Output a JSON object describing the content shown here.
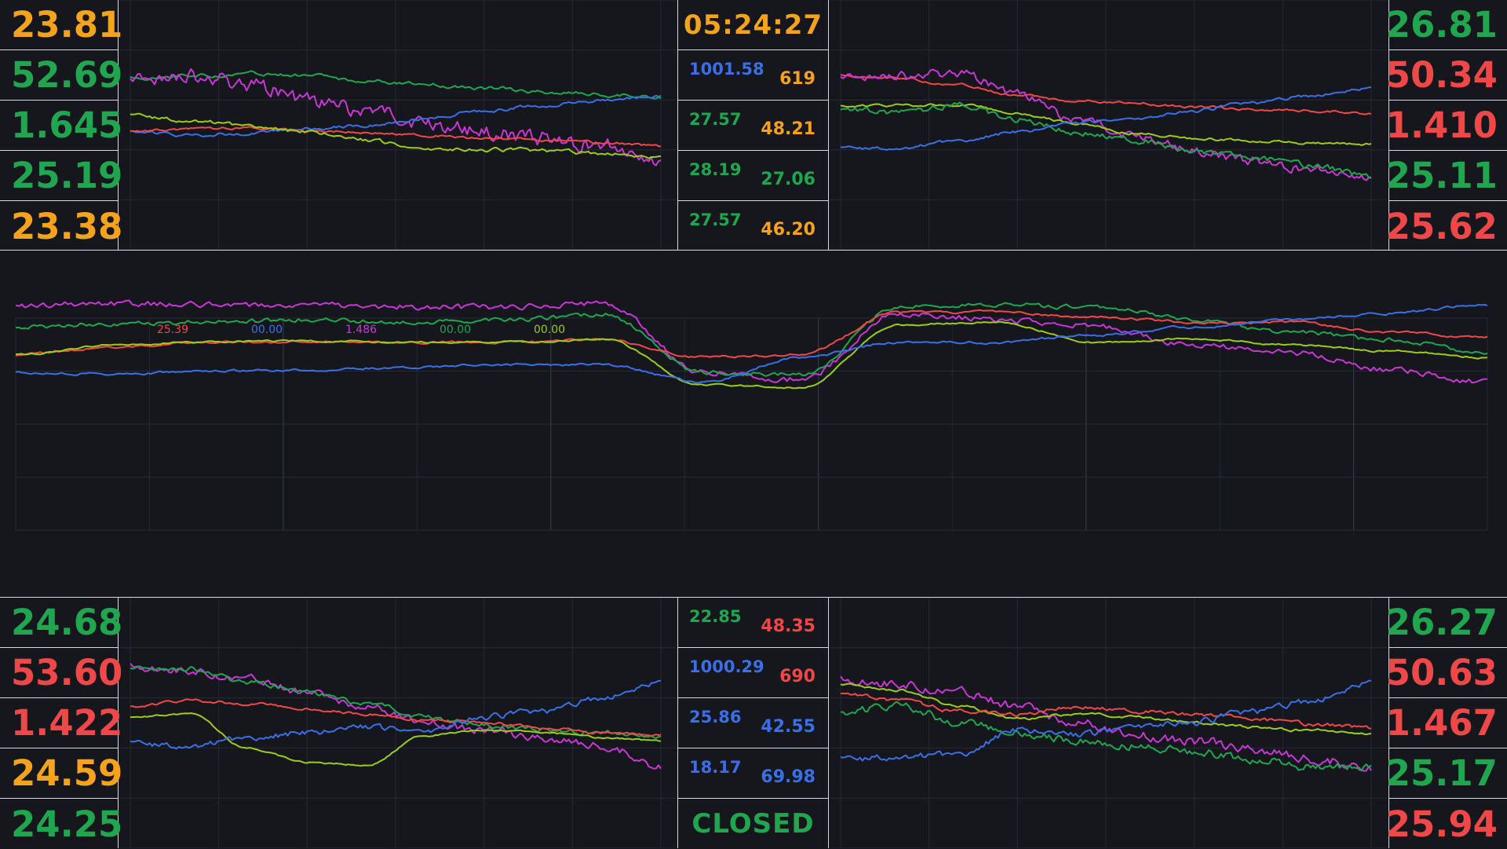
{
  "colors": {
    "red": "#f04848",
    "blue": "#3a6fe8",
    "magenta": "#c936d6",
    "green": "#1fa64f",
    "lime": "#9ccc1a",
    "orange": "#f5a21c",
    "grid": "#262a33"
  },
  "top_left_values": [
    {
      "text": "23.81",
      "color": "#f5a21c"
    },
    {
      "text": "52.69",
      "color": "#1fa64f"
    },
    {
      "text": "1.645",
      "color": "#1fa64f"
    },
    {
      "text": "25.19",
      "color": "#1fa64f"
    },
    {
      "text": "23.38",
      "color": "#f5a21c"
    }
  ],
  "top_right_values": [
    {
      "text": "26.81",
      "color": "#1fa64f"
    },
    {
      "text": "50.34",
      "color": "#f04848"
    },
    {
      "text": "1.410",
      "color": "#f04848"
    },
    {
      "text": "25.11",
      "color": "#1fa64f"
    },
    {
      "text": "25.62",
      "color": "#f04848"
    }
  ],
  "bottom_left_values": [
    {
      "text": "24.68",
      "color": "#1fa64f"
    },
    {
      "text": "53.60",
      "color": "#f04848"
    },
    {
      "text": "1.422",
      "color": "#f04848"
    },
    {
      "text": "24.59",
      "color": "#f5a21c"
    },
    {
      "text": "24.25",
      "color": "#1fa64f"
    }
  ],
  "bottom_right_values": [
    {
      "text": "26.27",
      "color": "#1fa64f"
    },
    {
      "text": "50.63",
      "color": "#f04848"
    },
    {
      "text": "1.467",
      "color": "#f04848"
    },
    {
      "text": "25.17",
      "color": "#1fa64f"
    },
    {
      "text": "25.94",
      "color": "#f04848"
    }
  ],
  "top_center": {
    "clock": {
      "text": "05:24:27",
      "color": "#f5a21c"
    },
    "rows": [
      {
        "a": "1001.58",
        "a_color": "#3a6fe8",
        "b": "619",
        "b_color": "#f5a21c"
      },
      {
        "a": "27.57",
        "a_color": "#1fa64f",
        "b": "48.21",
        "b_color": "#f5a21c"
      },
      {
        "a": "28.19",
        "a_color": "#1fa64f",
        "b": "27.06",
        "b_color": "#1fa64f"
      },
      {
        "a": "27.57",
        "a_color": "#1fa64f",
        "b": "46.20",
        "b_color": "#f5a21c"
      }
    ]
  },
  "bottom_center": {
    "rows": [
      {
        "a": "22.85",
        "a_color": "#1fa64f",
        "b": "48.35",
        "b_color": "#f04848"
      },
      {
        "a": "1000.29",
        "a_color": "#3a6fe8",
        "b": "690",
        "b_color": "#f04848"
      },
      {
        "a": "25.86",
        "a_color": "#3a6fe8",
        "b": "42.55",
        "b_color": "#3a6fe8"
      },
      {
        "a": "18.17",
        "a_color": "#3a6fe8",
        "b": "69.98",
        "b_color": "#3a6fe8"
      }
    ],
    "status": {
      "text": "CLOSED",
      "color": "#1fa64f"
    }
  },
  "chart_data": [
    {
      "id": "top-left",
      "type": "line",
      "ylim": [
        0,
        1
      ],
      "series": [
        {
          "color": "#1fa64f",
          "anchors": [
            0.12,
            0.1,
            0.09,
            0.1,
            0.14,
            0.17,
            0.2,
            0.23,
            0.25,
            0.27
          ],
          "noise": 0.012,
          "freq": 0.5
        },
        {
          "color": "#c936d6",
          "anchors": [
            0.14,
            0.1,
            0.17,
            0.3,
            0.38,
            0.48,
            0.55,
            0.6,
            0.66,
            0.76
          ],
          "noise": 0.05,
          "freq": 0.9
        },
        {
          "color": "#3a6fe8",
          "anchors": [
            0.54,
            0.58,
            0.56,
            0.52,
            0.5,
            0.44,
            0.38,
            0.34,
            0.3,
            0.27
          ],
          "noise": 0.01,
          "freq": 0.6
        },
        {
          "color": "#f04848",
          "anchors": [
            0.54,
            0.53,
            0.52,
            0.54,
            0.55,
            0.58,
            0.6,
            0.62,
            0.64,
            0.66
          ],
          "noise": 0.008,
          "freq": 0.5
        },
        {
          "color": "#9ccc1a",
          "anchors": [
            0.42,
            0.46,
            0.5,
            0.55,
            0.62,
            0.68,
            0.69,
            0.7,
            0.72,
            0.75
          ],
          "noise": 0.012,
          "freq": 0.6
        }
      ]
    },
    {
      "id": "top-right",
      "type": "line",
      "ylim": [
        0,
        1
      ],
      "series": [
        {
          "color": "#f04848",
          "anchors": [
            0.1,
            0.12,
            0.18,
            0.26,
            0.3,
            0.32,
            0.35,
            0.37,
            0.38,
            0.4
          ],
          "noise": 0.008,
          "freq": 0.5
        },
        {
          "color": "#c936d6",
          "anchors": [
            0.12,
            0.1,
            0.08,
            0.25,
            0.45,
            0.58,
            0.7,
            0.78,
            0.85,
            0.9
          ],
          "noise": 0.03,
          "freq": 0.9
        },
        {
          "color": "#9ccc1a",
          "anchors": [
            0.34,
            0.34,
            0.33,
            0.4,
            0.48,
            0.56,
            0.6,
            0.62,
            0.64,
            0.65
          ],
          "noise": 0.008,
          "freq": 0.5
        },
        {
          "color": "#1fa64f",
          "anchors": [
            0.36,
            0.4,
            0.34,
            0.45,
            0.55,
            0.62,
            0.7,
            0.76,
            0.82,
            0.9
          ],
          "noise": 0.02,
          "freq": 0.8
        },
        {
          "color": "#3a6fe8",
          "anchors": [
            0.68,
            0.68,
            0.62,
            0.55,
            0.48,
            0.44,
            0.38,
            0.32,
            0.26,
            0.2
          ],
          "noise": 0.01,
          "freq": 0.6
        }
      ]
    },
    {
      "id": "bottom-left",
      "type": "line",
      "ylim": [
        0,
        1
      ],
      "series": [
        {
          "color": "#c936d6",
          "anchors": [
            0.1,
            0.14,
            0.2,
            0.3,
            0.4,
            0.52,
            0.58,
            0.64,
            0.7,
            0.85
          ],
          "noise": 0.025,
          "freq": 0.9
        },
        {
          "color": "#1fa64f",
          "anchors": [
            0.12,
            0.12,
            0.22,
            0.3,
            0.38,
            0.48,
            0.54,
            0.58,
            0.6,
            0.62
          ],
          "noise": 0.015,
          "freq": 0.7
        },
        {
          "color": "#f04848",
          "anchors": [
            0.4,
            0.36,
            0.38,
            0.42,
            0.46,
            0.5,
            0.52,
            0.56,
            0.6,
            0.62
          ],
          "noise": 0.008,
          "freq": 0.5
        },
        {
          "color": "#9ccc1a",
          "anchors": [
            0.48,
            0.46,
            0.72,
            0.82,
            0.84,
            0.62,
            0.58,
            0.6,
            0.64,
            0.66
          ],
          "noise": 0.005,
          "freq": 0.4
        },
        {
          "color": "#3a6fe8",
          "anchors": [
            0.68,
            0.7,
            0.64,
            0.6,
            0.56,
            0.58,
            0.48,
            0.44,
            0.34,
            0.22
          ],
          "noise": 0.018,
          "freq": 0.8
        }
      ]
    },
    {
      "id": "bottom-right",
      "type": "line",
      "ylim": [
        0,
        1
      ],
      "series": [
        {
          "color": "#c936d6",
          "anchors": [
            0.2,
            0.24,
            0.3,
            0.4,
            0.52,
            0.62,
            0.66,
            0.72,
            0.8,
            0.86
          ],
          "noise": 0.03,
          "freq": 0.9
        },
        {
          "color": "#9ccc1a",
          "anchors": [
            0.24,
            0.28,
            0.4,
            0.5,
            0.46,
            0.48,
            0.52,
            0.56,
            0.58,
            0.6
          ],
          "noise": 0.008,
          "freq": 0.5
        },
        {
          "color": "#1fa64f",
          "anchors": [
            0.44,
            0.4,
            0.52,
            0.6,
            0.66,
            0.7,
            0.74,
            0.8,
            0.86,
            0.86
          ],
          "noise": 0.025,
          "freq": 0.9
        },
        {
          "color": "#f04848",
          "anchors": [
            0.3,
            0.36,
            0.44,
            0.46,
            0.4,
            0.44,
            0.46,
            0.5,
            0.54,
            0.56
          ],
          "noise": 0.012,
          "freq": 0.6
        },
        {
          "color": "#3a6fe8",
          "anchors": [
            0.8,
            0.78,
            0.76,
            0.58,
            0.62,
            0.54,
            0.52,
            0.44,
            0.36,
            0.22
          ],
          "noise": 0.02,
          "freq": 0.8
        }
      ]
    },
    {
      "id": "middle",
      "type": "line",
      "ylim": [
        0,
        1
      ],
      "labels": [
        {
          "text": "25.39",
          "color": "#f04848"
        },
        {
          "text": "00.00",
          "color": "#3a6fe8"
        },
        {
          "text": "1.486",
          "color": "#c936d6"
        },
        {
          "text": "00.00",
          "color": "#1fa64f"
        },
        {
          "text": "00.00",
          "color": "#9ccc1a"
        }
      ],
      "series": [
        {
          "color": "#c936d6",
          "anchors": [
            0.19,
            0.17,
            0.18,
            0.18,
            0.2,
            0.2,
            0.17,
            0.72,
            0.78,
            0.25,
            0.3,
            0.35,
            0.5,
            0.56,
            0.7,
            0.8
          ],
          "noise": 0.02,
          "freq": 1.0
        },
        {
          "color": "#1fa64f",
          "anchors": [
            0.36,
            0.33,
            0.32,
            0.3,
            0.32,
            0.3,
            0.26,
            0.72,
            0.74,
            0.2,
            0.18,
            0.2,
            0.3,
            0.4,
            0.46,
            0.56
          ],
          "noise": 0.015,
          "freq": 0.9
        },
        {
          "color": "#f04848",
          "anchors": [
            0.58,
            0.52,
            0.48,
            0.48,
            0.48,
            0.48,
            0.46,
            0.6,
            0.58,
            0.24,
            0.24,
            0.28,
            0.32,
            0.32,
            0.4,
            0.44
          ],
          "noise": 0.008,
          "freq": 0.6
        },
        {
          "color": "#9ccc1a",
          "anchors": [
            0.58,
            0.5,
            0.47,
            0.47,
            0.48,
            0.48,
            0.46,
            0.82,
            0.84,
            0.34,
            0.32,
            0.48,
            0.45,
            0.5,
            0.55,
            0.6
          ],
          "noise": 0.006,
          "freq": 0.5
        },
        {
          "color": "#3a6fe8",
          "anchors": [
            0.72,
            0.73,
            0.71,
            0.7,
            0.68,
            0.66,
            0.66,
            0.8,
            0.6,
            0.48,
            0.48,
            0.42,
            0.36,
            0.3,
            0.25,
            0.18
          ],
          "noise": 0.008,
          "freq": 0.6
        }
      ]
    }
  ]
}
